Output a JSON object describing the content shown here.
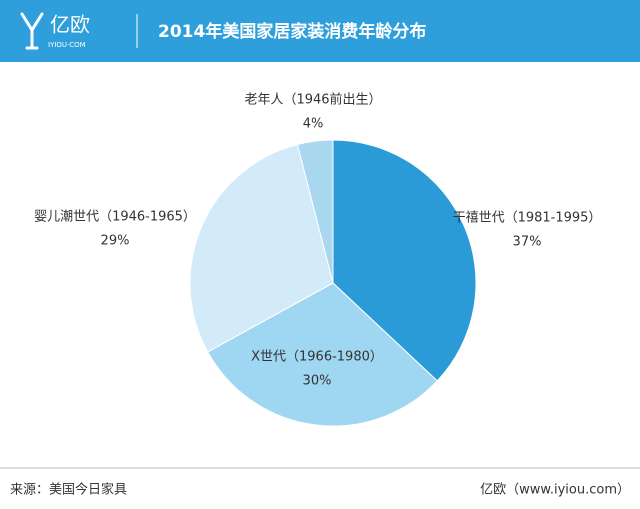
{
  "header": {
    "logo": "亿欧",
    "logo_sub": "IYIOU·COM"
  },
  "chart_data": {
    "type": "pie",
    "title": "2014年美国家居家装消费年龄分布",
    "categories": [
      "干禧世代（1981-1995）",
      "X世代（1966-1980）",
      "婴儿潮世代（1946-1965）",
      "老年人（1946前出生）"
    ],
    "values": [
      37,
      30,
      29,
      4
    ],
    "value_labels": [
      "37%",
      "30%",
      "29%",
      "4%"
    ],
    "colors": [
      "#2a9bd6",
      "#9fd6f1",
      "#d3ebf8",
      "#a8d7ef"
    ],
    "source": "来源：美国今日家具",
    "credit": "亿欧（www.iyiou.com）"
  }
}
